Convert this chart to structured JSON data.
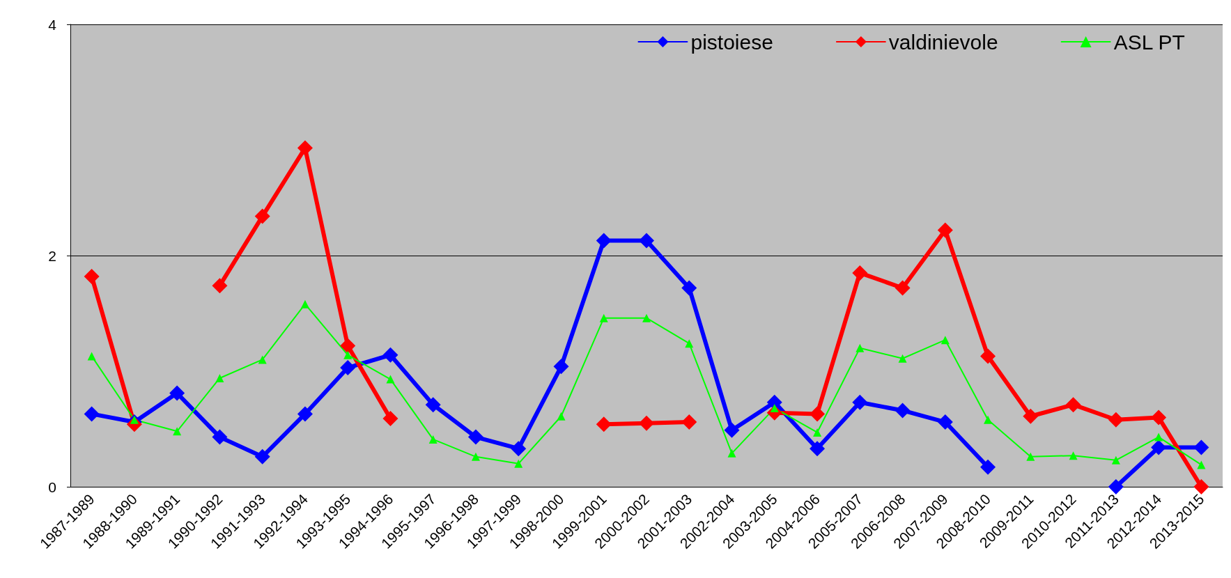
{
  "chart_data": {
    "type": "line",
    "categories": [
      "1987-1989",
      "1988-1990",
      "1989-1991",
      "1990-1992",
      "1991-1993",
      "1992-1994",
      "1993-1995",
      "1994-1996",
      "1995-1997",
      "1996-1998",
      "1997-1999",
      "1998-2000",
      "1999-2001",
      "2000-2002",
      "2001-2003",
      "2002-2004",
      "2003-2005",
      "2004-2006",
      "2005-2007",
      "2006-2008",
      "2007-2009",
      "2008-2010",
      "2009-2011",
      "2010-2012",
      "2011-2013",
      "2012-2014",
      "2013-2015"
    ],
    "series": [
      {
        "name": "pistoiese",
        "color": "#0000ff",
        "marker": "diamond",
        "values": [
          0.63,
          0.56,
          0.81,
          0.43,
          0.26,
          0.63,
          1.03,
          1.14,
          0.71,
          0.43,
          0.33,
          1.04,
          2.13,
          2.13,
          1.72,
          0.49,
          0.73,
          0.33,
          0.73,
          0.66,
          0.56,
          0.17,
          null,
          null,
          0,
          0.34,
          0.34
        ]
      },
      {
        "name": "valdinievole",
        "color": "#ff0000",
        "marker": "diamond",
        "values": [
          1.82,
          0.54,
          null,
          1.74,
          2.34,
          2.93,
          1.22,
          0.59,
          null,
          null,
          null,
          null,
          0.54,
          0.55,
          0.56,
          null,
          0.64,
          0.63,
          1.85,
          1.72,
          2.22,
          1.13,
          0.61,
          0.71,
          0.58,
          0.6,
          0
        ]
      },
      {
        "name": "ASL PT",
        "color": "#00ff00",
        "marker": "triangle",
        "values": [
          1.13,
          0.58,
          0.48,
          0.94,
          1.1,
          1.58,
          1.14,
          0.93,
          0.41,
          0.26,
          0.2,
          0.61,
          1.46,
          1.46,
          1.24,
          0.29,
          0.68,
          0.47,
          1.2,
          1.11,
          1.27,
          0.58,
          0.26,
          0.27,
          0.23,
          0.43,
          0.19
        ]
      }
    ],
    "ylim": [
      0,
      4
    ],
    "yticks": [
      0,
      2,
      4
    ],
    "grid": "y",
    "legend": "top right",
    "line_style": "solid"
  }
}
